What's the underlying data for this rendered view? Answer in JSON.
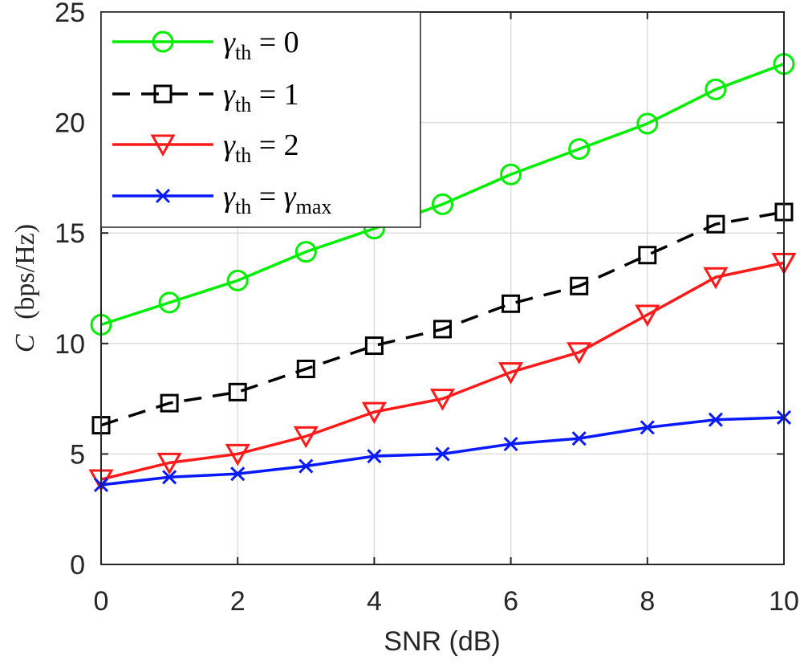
{
  "chart_data": {
    "type": "line",
    "title": "",
    "xlabel": "SNR (dB)",
    "ylabel": "C (bps/Hz)",
    "ylabel_parts": {
      "symbol": "C",
      "unit": "(bps/Hz)"
    },
    "xlim": [
      0,
      10
    ],
    "ylim": [
      0,
      25
    ],
    "xticks": [
      0,
      2,
      4,
      6,
      8,
      10
    ],
    "yticks": [
      0,
      5,
      10,
      15,
      20,
      25
    ],
    "grid": true,
    "legend_position": "top-left",
    "x": [
      0,
      1,
      2,
      3,
      4,
      5,
      6,
      7,
      8,
      9,
      10
    ],
    "series": [
      {
        "name": "γth = 0",
        "legend": {
          "sym": "γ",
          "sub": "th",
          "rhs_sym": "",
          "rhs_sub": "",
          "rhs": "0",
          "eq": " = "
        },
        "color": "#00ee00",
        "marker": "circle",
        "dash": "solid",
        "values": [
          10.85,
          11.85,
          12.85,
          14.15,
          15.2,
          16.3,
          17.65,
          18.8,
          19.95,
          21.5,
          22.65
        ]
      },
      {
        "name": "γth = 1",
        "legend": {
          "sym": "γ",
          "sub": "th",
          "rhs_sym": "",
          "rhs_sub": "",
          "rhs": "1",
          "eq": " = "
        },
        "color": "#000000",
        "marker": "square",
        "dash": "dashed",
        "values": [
          6.3,
          7.3,
          7.8,
          8.85,
          9.9,
          10.65,
          11.8,
          12.6,
          14.0,
          15.4,
          15.95
        ]
      },
      {
        "name": "γth = 2",
        "legend": {
          "sym": "γ",
          "sub": "th",
          "rhs_sym": "",
          "rhs_sub": "",
          "rhs": "2",
          "eq": " = "
        },
        "color": "#ff1a1a",
        "marker": "triangle-down",
        "dash": "solid",
        "values": [
          3.85,
          4.6,
          5.0,
          5.8,
          6.9,
          7.5,
          8.7,
          9.6,
          11.3,
          13.0,
          13.65
        ]
      },
      {
        "name": "γth = γmax",
        "legend": {
          "sym": "γ",
          "sub": "th",
          "rhs_sym": "γ",
          "rhs_sub": "max",
          "rhs": "",
          "eq": " = "
        },
        "color": "#0a1aff",
        "marker": "x",
        "dash": "solid",
        "values": [
          3.6,
          3.95,
          4.1,
          4.45,
          4.9,
          5.0,
          5.45,
          5.7,
          6.2,
          6.55,
          6.65
        ]
      }
    ]
  }
}
